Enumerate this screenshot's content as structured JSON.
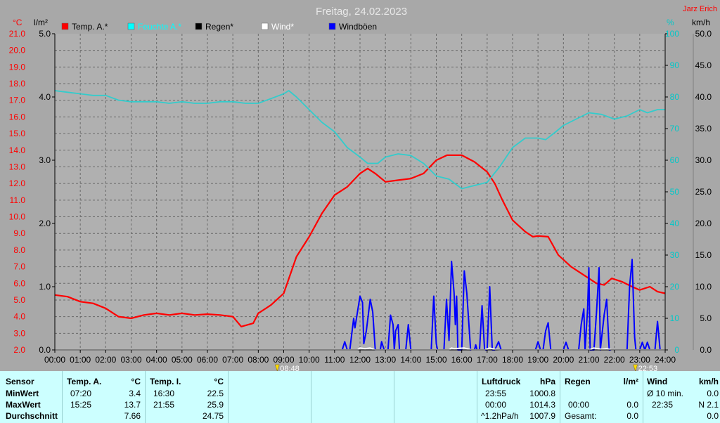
{
  "chart_data": {
    "type": "line",
    "title": "Freitag, 24.02.2023",
    "author": "Jarz Erich",
    "unit_labels": {
      "temp": "°C",
      "rain": "l/m²",
      "humidity": "%",
      "wind": "km/h"
    },
    "x_ticks": [
      "00:00",
      "01:00",
      "02:00",
      "03:00",
      "04:00",
      "05:00",
      "06:00",
      "07:00",
      "08:00",
      "09:00",
      "10:00",
      "11:00",
      "12:00",
      "13:00",
      "14:00",
      "15:00",
      "16:00",
      "17:00",
      "18:00",
      "19:00",
      "20:00",
      "21:00",
      "22:00",
      "23:00",
      "24:00"
    ],
    "axes": {
      "temp": {
        "range": [
          2,
          21
        ],
        "ticks": [
          "2.0",
          "3.0",
          "4.0",
          "5.0",
          "6.0",
          "7.0",
          "8.0",
          "9.0",
          "10.0",
          "11.0",
          "12.0",
          "13.0",
          "14.0",
          "15.0",
          "16.0",
          "17.0",
          "18.0",
          "19.0",
          "20.0",
          "21.0"
        ],
        "color": "#ff0000"
      },
      "rain": {
        "range": [
          0,
          5
        ],
        "ticks": [
          "0.0",
          "1.0",
          "2.0",
          "3.0",
          "4.0",
          "5.0"
        ]
      },
      "humidity": {
        "range": [
          0,
          100
        ],
        "ticks": [
          "0",
          "10",
          "20",
          "30",
          "40",
          "50",
          "60",
          "70",
          "80",
          "90",
          "100"
        ],
        "color": "#00c8c8"
      },
      "wind": {
        "range": [
          0,
          50
        ],
        "ticks": [
          "0.0",
          "5.0",
          "10.0",
          "15.0",
          "20.0",
          "25.0",
          "30.0",
          "35.0",
          "40.0",
          "45.0",
          "50.0"
        ]
      }
    },
    "markers": {
      "sunrise": "08:48",
      "sunset": "22:53"
    },
    "legend": [
      {
        "name": "Temp. A.*",
        "color": "#ff0000"
      },
      {
        "name": "Feuchte A.*",
        "color": "#00ffff"
      },
      {
        "name": "Regen*",
        "color": "#000000"
      },
      {
        "name": "Wind*",
        "color": "#ffffff"
      },
      {
        "name": "Windböen",
        "color": "#0000ff"
      }
    ],
    "series": [
      {
        "name": "Temp. A.*",
        "axis": "temp",
        "color": "#ff0000",
        "points": [
          [
            0,
            5.3
          ],
          [
            0.5,
            5.2
          ],
          [
            1,
            4.9
          ],
          [
            1.5,
            4.8
          ],
          [
            2,
            4.5
          ],
          [
            2.5,
            4.0
          ],
          [
            3,
            3.9
          ],
          [
            3.5,
            4.1
          ],
          [
            4,
            4.2
          ],
          [
            4.5,
            4.1
          ],
          [
            5,
            4.2
          ],
          [
            5.5,
            4.1
          ],
          [
            6,
            4.15
          ],
          [
            6.5,
            4.1
          ],
          [
            7,
            4.0
          ],
          [
            7.33,
            3.4
          ],
          [
            7.8,
            3.6
          ],
          [
            8,
            4.2
          ],
          [
            8.5,
            4.7
          ],
          [
            9,
            5.4
          ],
          [
            9.5,
            7.6
          ],
          [
            10,
            8.8
          ],
          [
            10.5,
            10.2
          ],
          [
            11,
            11.3
          ],
          [
            11.5,
            11.8
          ],
          [
            12,
            12.6
          ],
          [
            12.3,
            12.9
          ],
          [
            12.6,
            12.6
          ],
          [
            13,
            12.1
          ],
          [
            13.5,
            12.2
          ],
          [
            14,
            12.3
          ],
          [
            14.5,
            12.6
          ],
          [
            15,
            13.4
          ],
          [
            15.42,
            13.7
          ],
          [
            15.8,
            13.7
          ],
          [
            16,
            13.7
          ],
          [
            16.5,
            13.3
          ],
          [
            17,
            12.7
          ],
          [
            17.3,
            12.0
          ],
          [
            17.6,
            11.0
          ],
          [
            18,
            9.8
          ],
          [
            18.5,
            9.1
          ],
          [
            18.8,
            8.8
          ],
          [
            19,
            8.85
          ],
          [
            19.4,
            8.8
          ],
          [
            19.8,
            7.7
          ],
          [
            20.3,
            7.0
          ],
          [
            20.8,
            6.5
          ],
          [
            21.3,
            6.0
          ],
          [
            21.6,
            5.9
          ],
          [
            21.9,
            6.3
          ],
          [
            22.3,
            6.1
          ],
          [
            22.7,
            5.8
          ],
          [
            23,
            5.6
          ],
          [
            23.4,
            5.8
          ],
          [
            23.7,
            5.5
          ],
          [
            24,
            5.4
          ]
        ]
      },
      {
        "name": "Feuchte A.*",
        "axis": "humidity",
        "color": "#33cccc",
        "points": [
          [
            0,
            82
          ],
          [
            0.5,
            81.5
          ],
          [
            1,
            81
          ],
          [
            1.5,
            80.5
          ],
          [
            2,
            80.5
          ],
          [
            2.5,
            79
          ],
          [
            3,
            78.5
          ],
          [
            3.5,
            78.5
          ],
          [
            4,
            78.5
          ],
          [
            4.5,
            78
          ],
          [
            5,
            78.5
          ],
          [
            5.5,
            78
          ],
          [
            6,
            78
          ],
          [
            6.5,
            78.5
          ],
          [
            7,
            78.5
          ],
          [
            7.5,
            78
          ],
          [
            8,
            78
          ],
          [
            8.5,
            79.5
          ],
          [
            9,
            81
          ],
          [
            9.2,
            82
          ],
          [
            9.5,
            80
          ],
          [
            10,
            76
          ],
          [
            10.5,
            72
          ],
          [
            11,
            69
          ],
          [
            11.5,
            64
          ],
          [
            12,
            61
          ],
          [
            12.3,
            59
          ],
          [
            12.7,
            59
          ],
          [
            13,
            61
          ],
          [
            13.5,
            62
          ],
          [
            14,
            61.5
          ],
          [
            14.5,
            59
          ],
          [
            15,
            55
          ],
          [
            15.5,
            54
          ],
          [
            16,
            51
          ],
          [
            16.5,
            52
          ],
          [
            17,
            53
          ],
          [
            17.5,
            58
          ],
          [
            18,
            64
          ],
          [
            18.5,
            67
          ],
          [
            19,
            67
          ],
          [
            19.3,
            66.5
          ],
          [
            19.7,
            69
          ],
          [
            20,
            71
          ],
          [
            20.5,
            73
          ],
          [
            21,
            75
          ],
          [
            21.5,
            74.5
          ],
          [
            22,
            73
          ],
          [
            22.5,
            74
          ],
          [
            23,
            76
          ],
          [
            23.3,
            75
          ],
          [
            23.7,
            76
          ],
          [
            24,
            76
          ]
        ]
      },
      {
        "name": "Windböen",
        "axis": "wind",
        "color": "#0000ff",
        "points": [
          [
            0,
            0
          ],
          [
            11.3,
            0
          ],
          [
            11.4,
            1.3
          ],
          [
            11.5,
            0
          ],
          [
            11.6,
            0
          ],
          [
            11.75,
            5
          ],
          [
            11.8,
            3.5
          ],
          [
            11.9,
            6
          ],
          [
            12,
            8.5
          ],
          [
            12.1,
            7.5
          ],
          [
            12.15,
            1
          ],
          [
            12.25,
            3
          ],
          [
            12.4,
            8
          ],
          [
            12.5,
            6
          ],
          [
            12.6,
            0
          ],
          [
            12.8,
            0
          ],
          [
            12.85,
            1.3
          ],
          [
            12.95,
            0
          ],
          [
            13.1,
            0
          ],
          [
            13.2,
            5.5
          ],
          [
            13.3,
            4
          ],
          [
            13.35,
            0
          ],
          [
            13.4,
            3
          ],
          [
            13.5,
            4
          ],
          [
            13.55,
            0
          ],
          [
            13.8,
            0
          ],
          [
            13.9,
            4
          ],
          [
            14,
            0
          ],
          [
            14.8,
            0
          ],
          [
            14.9,
            8.5
          ],
          [
            15,
            1
          ],
          [
            15.05,
            0
          ],
          [
            15.3,
            0
          ],
          [
            15.4,
            8
          ],
          [
            15.5,
            1.5
          ],
          [
            15.6,
            14
          ],
          [
            15.7,
            9
          ],
          [
            15.75,
            4
          ],
          [
            15.8,
            8.5
          ],
          [
            15.85,
            0
          ],
          [
            16,
            0
          ],
          [
            16.1,
            12.5
          ],
          [
            16.2,
            9
          ],
          [
            16.3,
            3
          ],
          [
            16.35,
            0
          ],
          [
            16.5,
            0
          ],
          [
            16.55,
            0.8
          ],
          [
            16.6,
            0
          ],
          [
            16.7,
            0
          ],
          [
            16.8,
            7
          ],
          [
            16.9,
            0
          ],
          [
            17,
            0
          ],
          [
            17.1,
            10
          ],
          [
            17.2,
            0
          ],
          [
            17.3,
            0
          ],
          [
            17.45,
            1.3
          ],
          [
            17.55,
            0
          ],
          [
            18.9,
            0
          ],
          [
            19,
            1.3
          ],
          [
            19.1,
            0
          ],
          [
            19.2,
            0
          ],
          [
            19.3,
            3
          ],
          [
            19.4,
            4.3
          ],
          [
            19.5,
            0
          ],
          [
            20,
            0
          ],
          [
            20.1,
            1.2
          ],
          [
            20.2,
            0
          ],
          [
            20.6,
            0
          ],
          [
            20.7,
            4
          ],
          [
            20.8,
            6.5
          ],
          [
            20.85,
            0
          ],
          [
            20.95,
            6.5
          ],
          [
            21,
            13
          ],
          [
            21.05,
            0
          ],
          [
            21.2,
            0
          ],
          [
            21.3,
            6
          ],
          [
            21.4,
            13
          ],
          [
            21.45,
            0
          ],
          [
            21.6,
            5.5
          ],
          [
            21.7,
            8
          ],
          [
            21.8,
            0
          ],
          [
            22.5,
            0
          ],
          [
            22.6,
            10
          ],
          [
            22.7,
            14.3
          ],
          [
            22.8,
            2
          ],
          [
            22.85,
            0
          ],
          [
            23,
            0
          ],
          [
            23.1,
            1.2
          ],
          [
            23.2,
            0
          ],
          [
            23.3,
            1.2
          ],
          [
            23.4,
            0
          ],
          [
            23.6,
            0
          ],
          [
            23.7,
            4.5
          ],
          [
            23.8,
            0
          ],
          [
            24,
            0
          ]
        ]
      },
      {
        "name": "Wind*",
        "axis": "wind",
        "color": "#ffffff",
        "points": [
          [
            0,
            0
          ],
          [
            11.9,
            0
          ],
          [
            12,
            0.3
          ],
          [
            12.2,
            0.2
          ],
          [
            12.4,
            0.3
          ],
          [
            12.6,
            0
          ],
          [
            15.5,
            0
          ],
          [
            15.6,
            0.3
          ],
          [
            15.7,
            0.2
          ],
          [
            16.1,
            0.3
          ],
          [
            16.4,
            0
          ],
          [
            16.9,
            0
          ],
          [
            17.1,
            0.3
          ],
          [
            17.3,
            0.1
          ],
          [
            17.5,
            0
          ],
          [
            21,
            0
          ],
          [
            21.2,
            0.3
          ],
          [
            21.5,
            0.1
          ],
          [
            21.7,
            0.2
          ],
          [
            21.9,
            0
          ],
          [
            24,
            0
          ]
        ]
      }
    ]
  },
  "table": {
    "col_sensor": [
      "Sensor",
      "MinWert",
      "MaxWert",
      "Durchschnitt"
    ],
    "temp_a": {
      "header": "Temp. A.",
      "unit": "°C",
      "min_time": "07:20",
      "min_val": "3.4",
      "max_time": "15:25",
      "max_val": "13.7",
      "avg": "7.66"
    },
    "temp_i": {
      "header": "Temp. I.",
      "unit": "°C",
      "min_time": "16:30",
      "min_val": "22.5",
      "max_time": "21:55",
      "max_val": "25.9",
      "avg": "24.75"
    },
    "luftdruck": {
      "header": "Luftdruck",
      "unit": "hPa",
      "r1_time": "23:55",
      "r1_val": "1000.8",
      "r2_time": "00:00",
      "r2_val": "1014.3",
      "r3_time": "^1.2hPa/h",
      "r3_val": "1007.9"
    },
    "regen": {
      "header": "Regen",
      "unit": "l/m²",
      "r2_time": "00:00",
      "r2_val": "0.0",
      "r3_label": "Gesamt:",
      "r3_val": "0.0"
    },
    "wind": {
      "header": "Wind",
      "unit": "km/h",
      "r1_label": "Ø 10 min.",
      "r1_val": "0.0",
      "r2_time": "22:35",
      "r2_val": "N 2.1",
      "r3_val": "0.0"
    }
  }
}
